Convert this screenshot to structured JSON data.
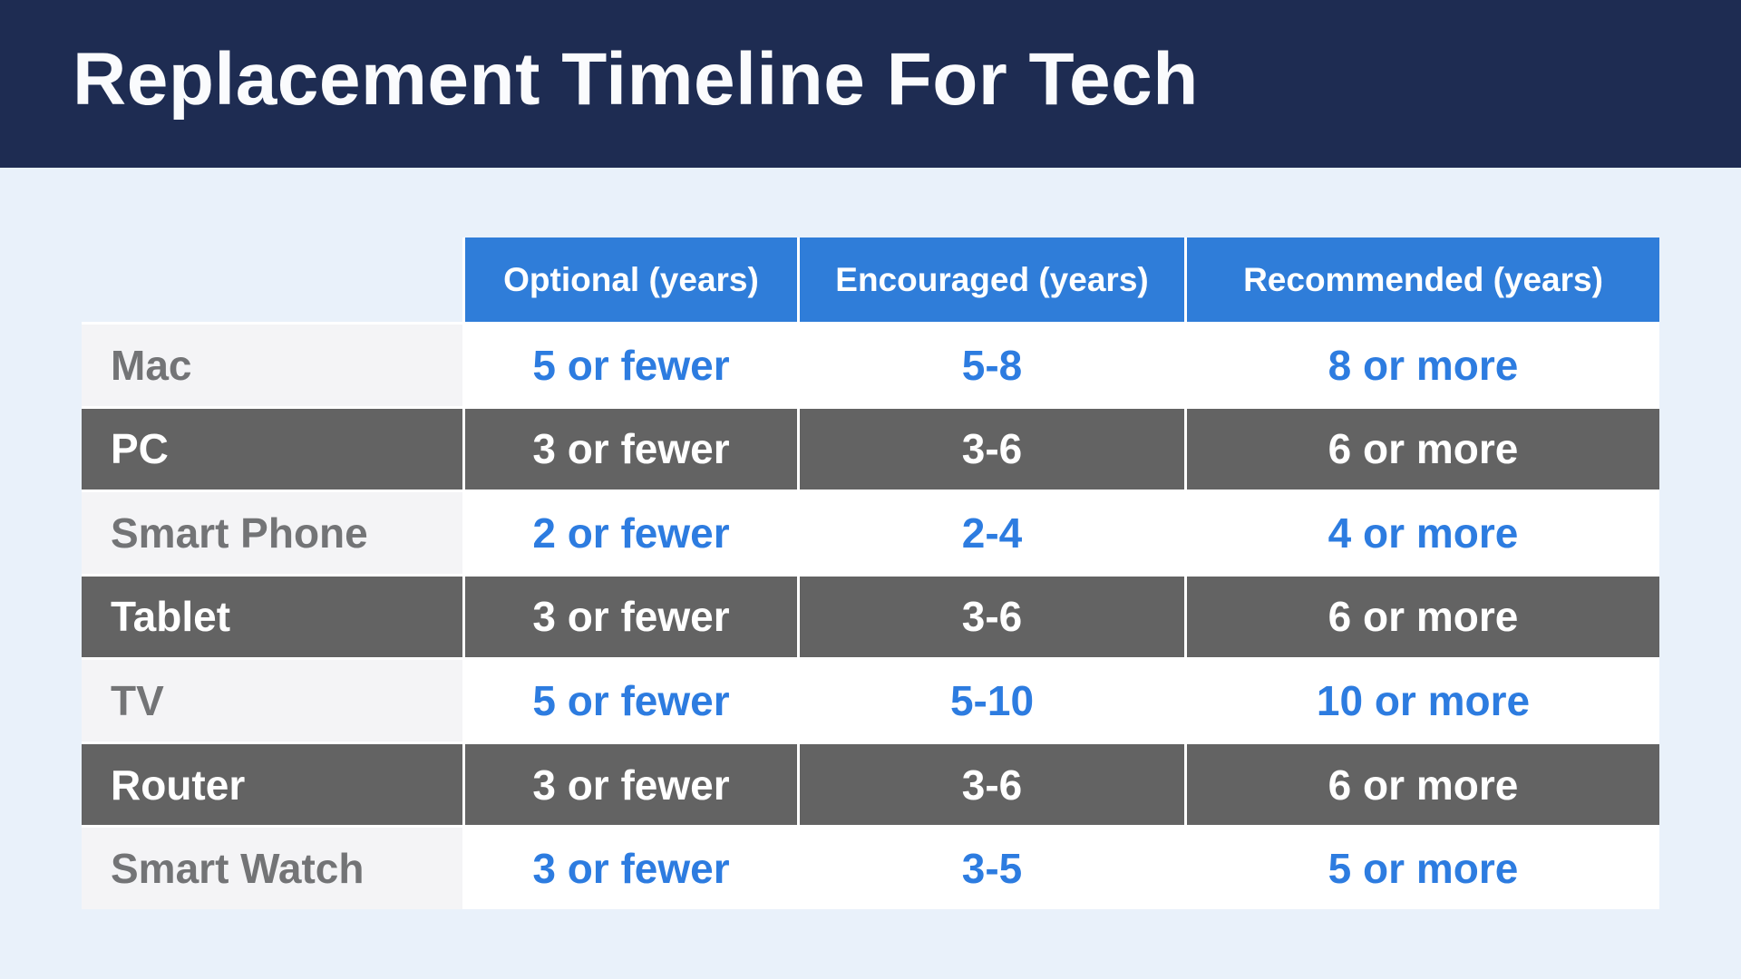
{
  "title_bar": {
    "title": "Replacement Timeline For Tech",
    "background": "#1e2c52",
    "text_color": "#fafbfd"
  },
  "page": {
    "background": "#e9f1fa"
  },
  "table": {
    "header_background": "#2f7dd9",
    "accent_text_color": "#2d7ce0",
    "dark_row_background": "#636363",
    "light_label_background": "#f4f4f6",
    "light_label_text_color": "#737476",
    "columns": [
      "Optional (years)",
      "Encouraged (years)",
      "Recommended (years)"
    ],
    "rows": [
      {
        "label": "Mac",
        "optional": "5 or fewer",
        "encouraged": "5-8",
        "recommended": "8 or more",
        "variant": "light"
      },
      {
        "label": "PC",
        "optional": "3 or fewer",
        "encouraged": "3-6",
        "recommended": "6 or more",
        "variant": "dark"
      },
      {
        "label": "Smart Phone",
        "optional": "2 or fewer",
        "encouraged": "2-4",
        "recommended": "4 or more",
        "variant": "light"
      },
      {
        "label": "Tablet",
        "optional": "3 or fewer",
        "encouraged": "3-6",
        "recommended": "6 or more",
        "variant": "dark"
      },
      {
        "label": "TV",
        "optional": "5 or fewer",
        "encouraged": "5-10",
        "recommended": "10 or more",
        "variant": "light"
      },
      {
        "label": "Router",
        "optional": "3 or fewer",
        "encouraged": "3-6",
        "recommended": "6 or more",
        "variant": "dark"
      },
      {
        "label": "Smart Watch",
        "optional": "3 or fewer",
        "encouraged": "3-5",
        "recommended": "5 or more",
        "variant": "light"
      }
    ]
  },
  "chart_data": {
    "type": "table",
    "title": "Replacement Timeline For Tech",
    "columns": [
      "Optional (years)",
      "Encouraged (years)",
      "Recommended (years)"
    ],
    "categories": [
      "Mac",
      "PC",
      "Smart Phone",
      "Tablet",
      "TV",
      "Router",
      "Smart Watch"
    ],
    "values": [
      [
        "5 or fewer",
        "5-8",
        "8 or more"
      ],
      [
        "3 or fewer",
        "3-6",
        "6 or more"
      ],
      [
        "2 or fewer",
        "2-4",
        "4 or more"
      ],
      [
        "3 or fewer",
        "3-6",
        "6 or more"
      ],
      [
        "5 or fewer",
        "5-10",
        "10 or more"
      ],
      [
        "3 or fewer",
        "3-6",
        "6 or more"
      ],
      [
        "3 or fewer",
        "3-5",
        "5 or more"
      ]
    ],
    "legend_position": "none",
    "grid": "white 3px separators between cells"
  }
}
